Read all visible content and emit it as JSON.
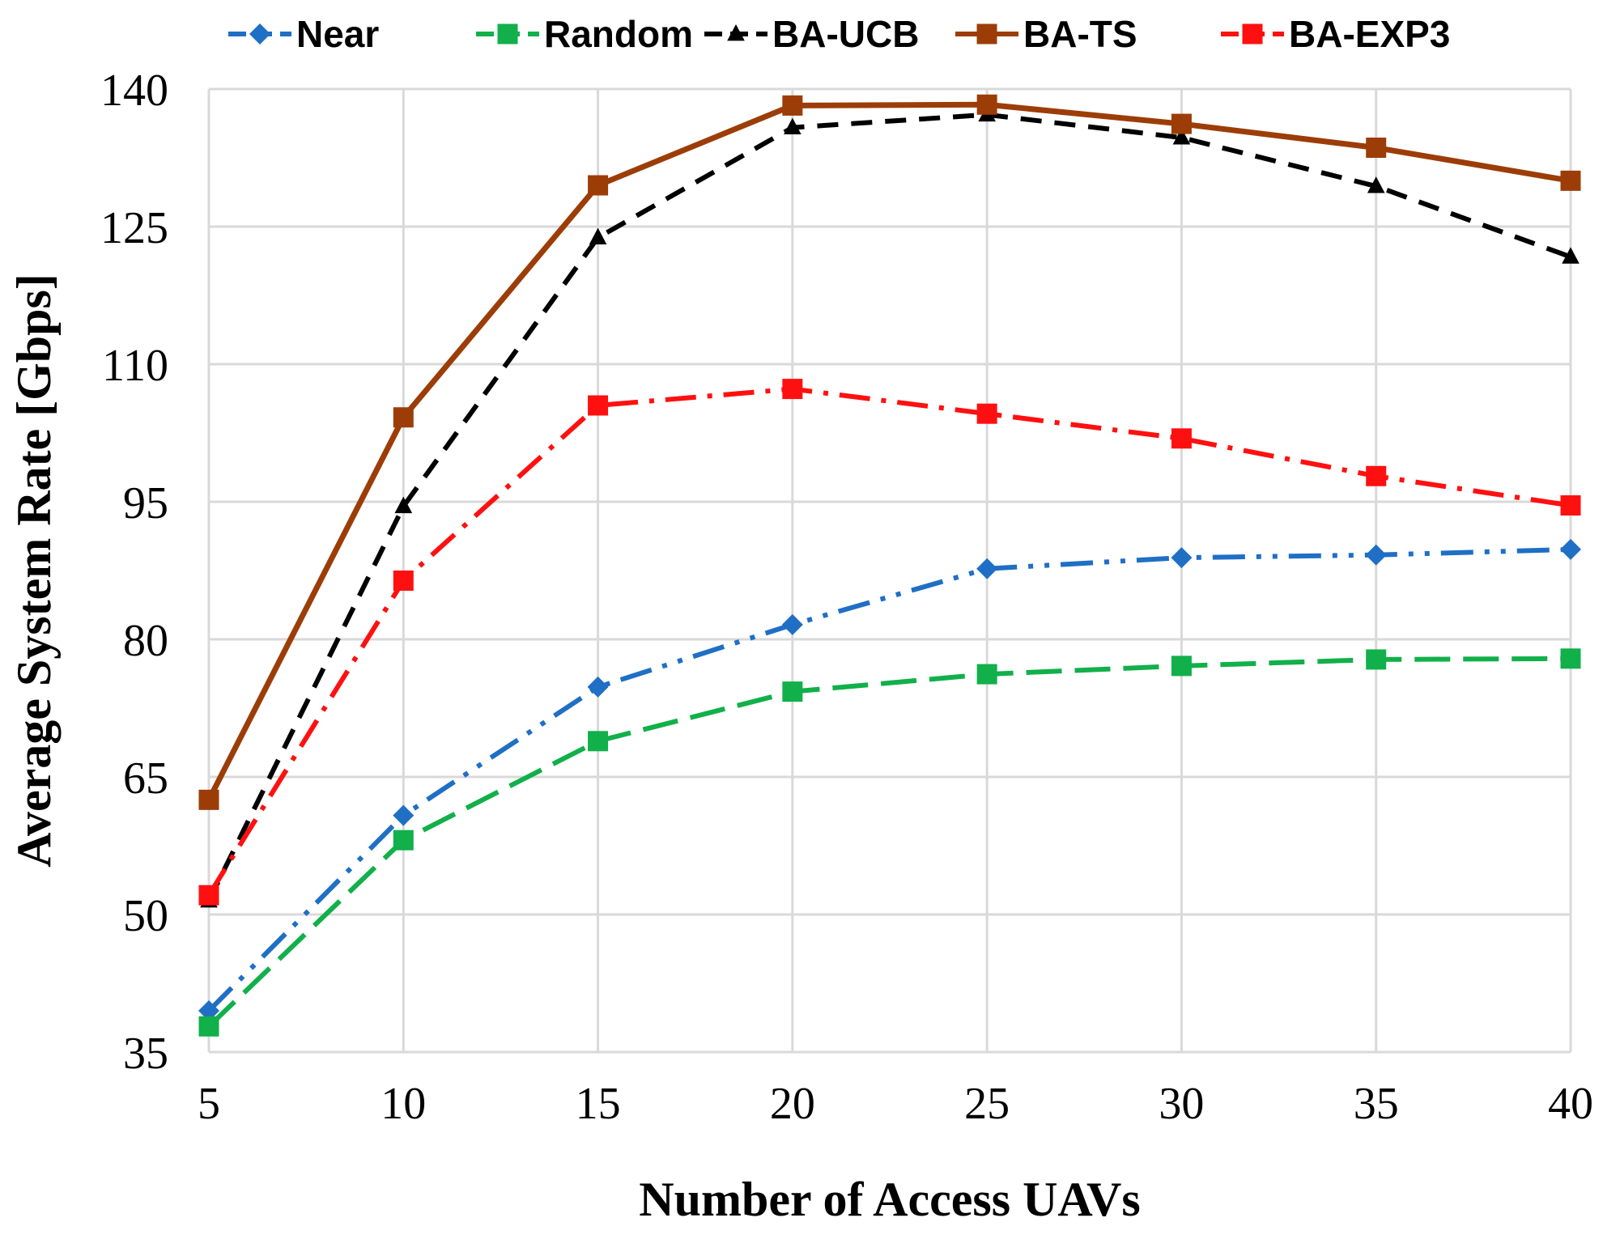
{
  "chart_data": {
    "type": "line",
    "title": "",
    "xlabel": "Number of Access UAVs",
    "ylabel": "Average System Rate [Gbps]",
    "x": [
      5,
      10,
      15,
      20,
      25,
      30,
      35,
      40
    ],
    "xticks": [
      "5",
      "10",
      "15",
      "20",
      "25",
      "30",
      "35",
      "40"
    ],
    "yticks": [
      "35",
      "50",
      "65",
      "80",
      "95",
      "110",
      "125",
      "140"
    ],
    "xlim": [
      5,
      40
    ],
    "ylim": [
      35,
      140
    ],
    "grid": true,
    "legend_position": "top",
    "series": [
      {
        "name": "Near",
        "color": "#1F6FC5",
        "marker": "diamond",
        "line_style": "dash-dot-dot",
        "values": [
          39.5,
          60.8,
          74.8,
          81.6,
          87.7,
          88.9,
          89.2,
          89.8
        ]
      },
      {
        "name": "Random",
        "color": "#11B04A",
        "marker": "square",
        "line_style": "long-dash",
        "values": [
          37.8,
          58.1,
          68.9,
          74.3,
          76.2,
          77.1,
          77.8,
          77.9
        ]
      },
      {
        "name": "BA-UCB",
        "color": "#000000",
        "marker": "triangle",
        "line_style": "dash",
        "values": [
          51.5,
          94.5,
          123.8,
          135.8,
          137.2,
          134.7,
          129.4,
          121.7
        ]
      },
      {
        "name": "BA-TS",
        "color": "#9C3D08",
        "marker": "square",
        "line_style": "solid",
        "values": [
          62.5,
          104.2,
          129.5,
          138.2,
          138.3,
          136.2,
          133.6,
          130.0
        ]
      },
      {
        "name": "BA-EXP3",
        "color": "#FF1010",
        "marker": "square",
        "line_style": "dash-dot",
        "values": [
          52.1,
          86.4,
          105.5,
          107.3,
          104.6,
          101.9,
          97.8,
          94.6
        ]
      }
    ]
  }
}
